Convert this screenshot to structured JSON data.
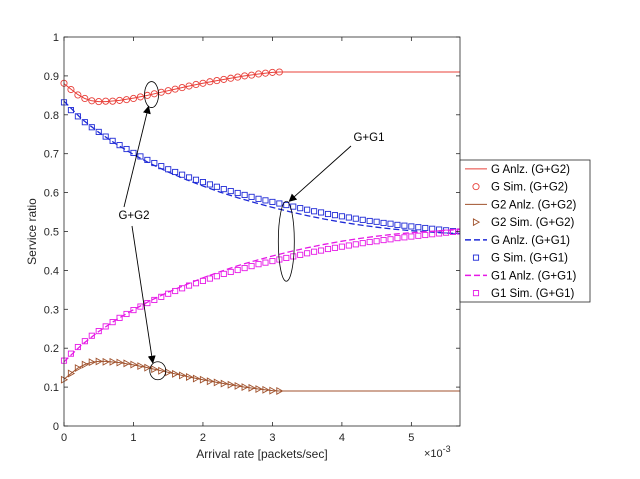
{
  "chart_data": {
    "type": "line",
    "title": "",
    "xlabel": "Arrival rate [packets/sec]",
    "ylabel": "Service ratio",
    "x_exponent_label": "×10",
    "x_exponent": "-3",
    "xlim": [
      0,
      5.7
    ],
    "ylim": [
      0,
      1
    ],
    "xticks": [
      "0",
      "1",
      "2",
      "3",
      "4",
      "5"
    ],
    "xtick_values": [
      0,
      1,
      2,
      3,
      4,
      5
    ],
    "yticks": [
      "0",
      "0.1",
      "0.2",
      "0.3",
      "0.4",
      "0.5",
      "0.6",
      "0.7",
      "0.8",
      "0.9",
      "1"
    ],
    "ytick_values": [
      0,
      0.1,
      0.2,
      0.3,
      0.4,
      0.5,
      0.6,
      0.7,
      0.8,
      0.9,
      1
    ],
    "grid": false,
    "legend_position": "right",
    "series": [
      {
        "name": "G Anlz. (G+G2)",
        "style": "line",
        "color": "#e8403a",
        "x": [
          0,
          0.1,
          0.2,
          0.3,
          0.4,
          0.5,
          0.6,
          0.8,
          1.0,
          1.2,
          1.4,
          1.6,
          1.8,
          2.0,
          2.2,
          2.4,
          2.6,
          2.8,
          3.0,
          3.1,
          3.2,
          4.0,
          5.0,
          5.7
        ],
        "y": [
          0.88,
          0.866,
          0.852,
          0.842,
          0.836,
          0.834,
          0.834,
          0.837,
          0.843,
          0.85,
          0.858,
          0.866,
          0.874,
          0.881,
          0.888,
          0.894,
          0.9,
          0.905,
          0.909,
          0.91,
          0.91,
          0.91,
          0.91,
          0.91
        ]
      },
      {
        "name": "G Sim. (G+G2)",
        "style": "marker",
        "marker": "circle",
        "color": "#e8403a",
        "x": [
          0.0,
          0.1,
          0.2,
          0.3,
          0.4,
          0.5,
          0.6,
          0.7,
          0.8,
          0.9,
          1.0,
          1.1,
          1.2,
          1.3,
          1.4,
          1.5,
          1.6,
          1.7,
          1.8,
          1.9,
          2.0,
          2.1,
          2.2,
          2.3,
          2.4,
          2.5,
          2.6,
          2.7,
          2.8,
          2.9,
          3.0,
          3.1
        ],
        "y": [
          0.881,
          0.865,
          0.851,
          0.842,
          0.836,
          0.834,
          0.835,
          0.835,
          0.837,
          0.839,
          0.842,
          0.846,
          0.85,
          0.854,
          0.858,
          0.862,
          0.866,
          0.87,
          0.874,
          0.878,
          0.881,
          0.885,
          0.888,
          0.891,
          0.894,
          0.897,
          0.9,
          0.902,
          0.905,
          0.907,
          0.909,
          0.91
        ]
      },
      {
        "name": "G2 Anlz. (G+G2)",
        "style": "line",
        "color": "#a0522d",
        "x": [
          0,
          0.1,
          0.2,
          0.3,
          0.4,
          0.5,
          0.6,
          0.8,
          1.0,
          1.2,
          1.4,
          1.6,
          1.8,
          2.0,
          2.2,
          2.4,
          2.6,
          2.8,
          3.0,
          3.1,
          3.2,
          4.0,
          5.0,
          5.7
        ],
        "y": [
          0.12,
          0.135,
          0.149,
          0.158,
          0.164,
          0.166,
          0.166,
          0.163,
          0.157,
          0.15,
          0.142,
          0.134,
          0.126,
          0.119,
          0.112,
          0.106,
          0.1,
          0.095,
          0.091,
          0.09,
          0.09,
          0.09,
          0.09,
          0.09
        ]
      },
      {
        "name": "G2 Sim. (G+G2)",
        "style": "marker",
        "marker": "triangle-right",
        "color": "#a0522d",
        "x": [
          0.0,
          0.1,
          0.2,
          0.3,
          0.4,
          0.5,
          0.6,
          0.7,
          0.8,
          0.9,
          1.0,
          1.1,
          1.2,
          1.3,
          1.4,
          1.5,
          1.6,
          1.7,
          1.8,
          1.9,
          2.0,
          2.1,
          2.2,
          2.3,
          2.4,
          2.5,
          2.6,
          2.7,
          2.8,
          2.9,
          3.0,
          3.1
        ],
        "y": [
          0.119,
          0.135,
          0.149,
          0.158,
          0.164,
          0.166,
          0.165,
          0.165,
          0.163,
          0.161,
          0.158,
          0.154,
          0.15,
          0.146,
          0.142,
          0.138,
          0.134,
          0.13,
          0.126,
          0.122,
          0.119,
          0.115,
          0.112,
          0.109,
          0.106,
          0.103,
          0.1,
          0.098,
          0.095,
          0.093,
          0.091,
          0.09
        ]
      },
      {
        "name": "G Anlz. (G+G1)",
        "style": "dashed",
        "color": "#1f2ad6",
        "x": [
          0,
          0.25,
          0.5,
          0.75,
          1.0,
          1.25,
          1.5,
          1.75,
          2.0,
          2.25,
          2.5,
          2.75,
          3.0,
          3.25,
          3.5,
          3.75,
          4.0,
          4.25,
          4.5,
          4.75,
          5.0,
          5.25,
          5.5,
          5.7
        ],
        "y": [
          0.835,
          0.79,
          0.755,
          0.725,
          0.698,
          0.674,
          0.653,
          0.634,
          0.617,
          0.601,
          0.587,
          0.574,
          0.562,
          0.551,
          0.541,
          0.532,
          0.524,
          0.517,
          0.511,
          0.506,
          0.502,
          0.499,
          0.496,
          0.495
        ]
      },
      {
        "name": "G Sim. (G+G1)",
        "style": "marker",
        "marker": "square",
        "color": "#1f2ad6",
        "x": [
          0.0,
          0.1,
          0.2,
          0.3,
          0.4,
          0.5,
          0.6,
          0.7,
          0.8,
          0.9,
          1.0,
          1.1,
          1.2,
          1.3,
          1.4,
          1.5,
          1.6,
          1.7,
          1.8,
          1.9,
          2.0,
          2.1,
          2.2,
          2.3,
          2.4,
          2.5,
          2.6,
          2.7,
          2.8,
          2.9,
          3.0,
          3.1,
          3.2,
          3.3,
          3.4,
          3.5,
          3.6,
          3.7,
          3.8,
          3.9,
          4.0,
          4.1,
          4.2,
          4.3,
          4.4,
          4.5,
          4.6,
          4.7,
          4.8,
          4.9,
          5.0,
          5.1,
          5.2,
          5.3,
          5.4,
          5.5,
          5.6,
          5.7
        ],
        "y": [
          0.832,
          0.812,
          0.796,
          0.781,
          0.768,
          0.756,
          0.744,
          0.733,
          0.722,
          0.712,
          0.702,
          0.693,
          0.684,
          0.676,
          0.668,
          0.66,
          0.653,
          0.646,
          0.639,
          0.633,
          0.627,
          0.621,
          0.615,
          0.609,
          0.604,
          0.599,
          0.594,
          0.589,
          0.584,
          0.58,
          0.576,
          0.572,
          0.568,
          0.564,
          0.56,
          0.556,
          0.552,
          0.549,
          0.545,
          0.542,
          0.539,
          0.536,
          0.533,
          0.53,
          0.527,
          0.525,
          0.522,
          0.52,
          0.517,
          0.515,
          0.513,
          0.511,
          0.509,
          0.507,
          0.505,
          0.503,
          0.501,
          0.5
        ]
      },
      {
        "name": "G1 Anlz. (G+G1)",
        "style": "dashed",
        "color": "#e619e6",
        "x": [
          0,
          0.25,
          0.5,
          0.75,
          1.0,
          1.25,
          1.5,
          1.75,
          2.0,
          2.25,
          2.5,
          2.75,
          3.0,
          3.25,
          3.5,
          3.75,
          4.0,
          4.25,
          4.5,
          4.75,
          5.0,
          5.25,
          5.5,
          5.7
        ],
        "y": [
          0.165,
          0.208,
          0.243,
          0.273,
          0.299,
          0.323,
          0.344,
          0.363,
          0.381,
          0.397,
          0.412,
          0.425,
          0.437,
          0.448,
          0.458,
          0.467,
          0.475,
          0.482,
          0.488,
          0.493,
          0.497,
          0.5,
          0.503,
          0.505
        ]
      },
      {
        "name": "G1 Sim. (G+G1)",
        "style": "marker",
        "marker": "square",
        "color": "#e619e6",
        "x": [
          0.0,
          0.1,
          0.2,
          0.3,
          0.4,
          0.5,
          0.6,
          0.7,
          0.8,
          0.9,
          1.0,
          1.1,
          1.2,
          1.3,
          1.4,
          1.5,
          1.6,
          1.7,
          1.8,
          1.9,
          2.0,
          2.1,
          2.2,
          2.3,
          2.4,
          2.5,
          2.6,
          2.7,
          2.8,
          2.9,
          3.0,
          3.1,
          3.2,
          3.3,
          3.4,
          3.5,
          3.6,
          3.7,
          3.8,
          3.9,
          4.0,
          4.1,
          4.2,
          4.3,
          4.4,
          4.5,
          4.6,
          4.7,
          4.8,
          4.9,
          5.0,
          5.1,
          5.2,
          5.3,
          5.4,
          5.5,
          5.6,
          5.7
        ],
        "y": [
          0.168,
          0.186,
          0.203,
          0.218,
          0.232,
          0.244,
          0.256,
          0.267,
          0.278,
          0.288,
          0.298,
          0.307,
          0.316,
          0.324,
          0.332,
          0.34,
          0.347,
          0.354,
          0.361,
          0.367,
          0.373,
          0.379,
          0.385,
          0.391,
          0.396,
          0.401,
          0.406,
          0.411,
          0.416,
          0.42,
          0.424,
          0.428,
          0.432,
          0.436,
          0.44,
          0.444,
          0.448,
          0.451,
          0.455,
          0.458,
          0.461,
          0.464,
          0.467,
          0.47,
          0.473,
          0.475,
          0.478,
          0.48,
          0.483,
          0.485,
          0.487,
          0.489,
          0.491,
          0.493,
          0.495,
          0.497,
          0.499,
          0.5
        ]
      }
    ],
    "annotations": [
      {
        "text": "G+G2",
        "target_ellipses": [
          {
            "x": 1.26,
            "y": 0.852
          },
          {
            "x": 1.35,
            "y": 0.142
          }
        ]
      },
      {
        "text": "G+G1",
        "target_ellipses": [
          {
            "x": 3.2,
            "y": 0.475
          }
        ]
      }
    ]
  }
}
